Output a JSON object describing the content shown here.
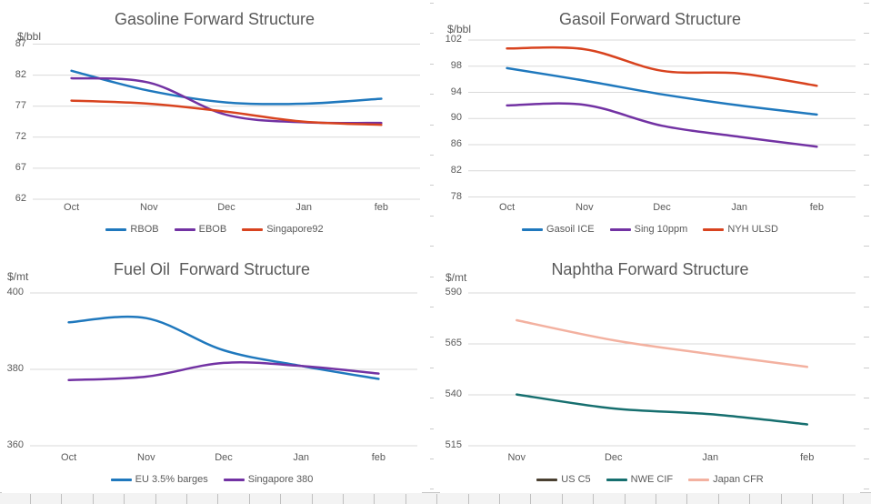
{
  "page": {
    "background": "#ffffff",
    "text_color": "#595959",
    "gridline_color": "#d9d9d9",
    "sheet_gridline_color": "#c4c4c4"
  },
  "chart_data": [
    {
      "type": "line",
      "title": "Gasoline Forward Structure",
      "ylabel": "$/bbl",
      "categories": [
        "Oct",
        "Nov",
        "Dec",
        "Jan",
        "feb"
      ],
      "yticks": [
        87,
        82,
        77,
        72,
        67,
        62
      ],
      "ylim": [
        62,
        87
      ],
      "grid": true,
      "smooth": true,
      "legend_position": "bottom",
      "series": [
        {
          "name": "RBOB",
          "color": "#1F78BD",
          "values": [
            82.7,
            79.5,
            77.6,
            77.4,
            78.2
          ]
        },
        {
          "name": "EBOB",
          "color": "#7232A3",
          "values": [
            81.5,
            80.8,
            75.6,
            74.4,
            74.3
          ]
        },
        {
          "name": "Singapore92",
          "color": "#D8431F",
          "values": [
            77.9,
            77.4,
            76.1,
            74.5,
            74.0
          ]
        }
      ]
    },
    {
      "type": "line",
      "title": "Gasoil Forward Structure",
      "ylabel": "$/bbl",
      "categories": [
        "Oct",
        "Nov",
        "Dec",
        "Jan",
        "feb"
      ],
      "yticks": [
        102,
        98,
        94,
        90,
        86,
        82,
        78
      ],
      "ylim": [
        78,
        102
      ],
      "grid": true,
      "smooth": true,
      "legend_position": "bottom",
      "series": [
        {
          "name": "Gasoil ICE",
          "color": "#1F78BD",
          "values": [
            97.7,
            95.8,
            93.7,
            92.0,
            90.6
          ]
        },
        {
          "name": "Sing 10ppm",
          "color": "#7232A3",
          "values": [
            92.0,
            92.1,
            88.9,
            87.2,
            85.7
          ]
        },
        {
          "name": "NYH ULSD",
          "color": "#D8431F",
          "values": [
            100.7,
            100.6,
            97.3,
            96.9,
            95.0
          ]
        }
      ]
    },
    {
      "type": "line",
      "title": "Fuel Oil  Forward Structure",
      "ylabel": "$/mt",
      "categories": [
        "Oct",
        "Nov",
        "Dec",
        "Jan",
        "feb"
      ],
      "yticks": [
        400,
        380,
        360
      ],
      "ylim": [
        360,
        400
      ],
      "grid": true,
      "smooth": true,
      "legend_position": "bottom",
      "series": [
        {
          "name": "EU 3.5% barges",
          "color": "#1F78BD",
          "values": [
            392.3,
            393.4,
            385.0,
            380.9,
            377.5
          ]
        },
        {
          "name": "Singapore 380",
          "color": "#7232A3",
          "values": [
            377.2,
            378.1,
            381.7,
            380.9,
            378.9
          ]
        }
      ]
    },
    {
      "type": "line",
      "title": "Naphtha Forward Structure",
      "ylabel": "$/mt",
      "categories": [
        "Nov",
        "Dec",
        "Jan",
        "feb"
      ],
      "yticks": [
        590,
        565,
        540,
        515
      ],
      "ylim": [
        515,
        590
      ],
      "grid": true,
      "smooth": true,
      "legend_position": "bottom",
      "series": [
        {
          "name": "US C5",
          "color": "#4A4031",
          "values": null
        },
        {
          "name": "NWE CIF",
          "color": "#166F6F",
          "values": [
            540.2,
            533.3,
            530.5,
            525.5
          ]
        },
        {
          "name": "Japan CFR",
          "color": "#F3B1A0",
          "values": [
            576.6,
            566.8,
            560.0,
            553.7
          ]
        }
      ]
    }
  ]
}
